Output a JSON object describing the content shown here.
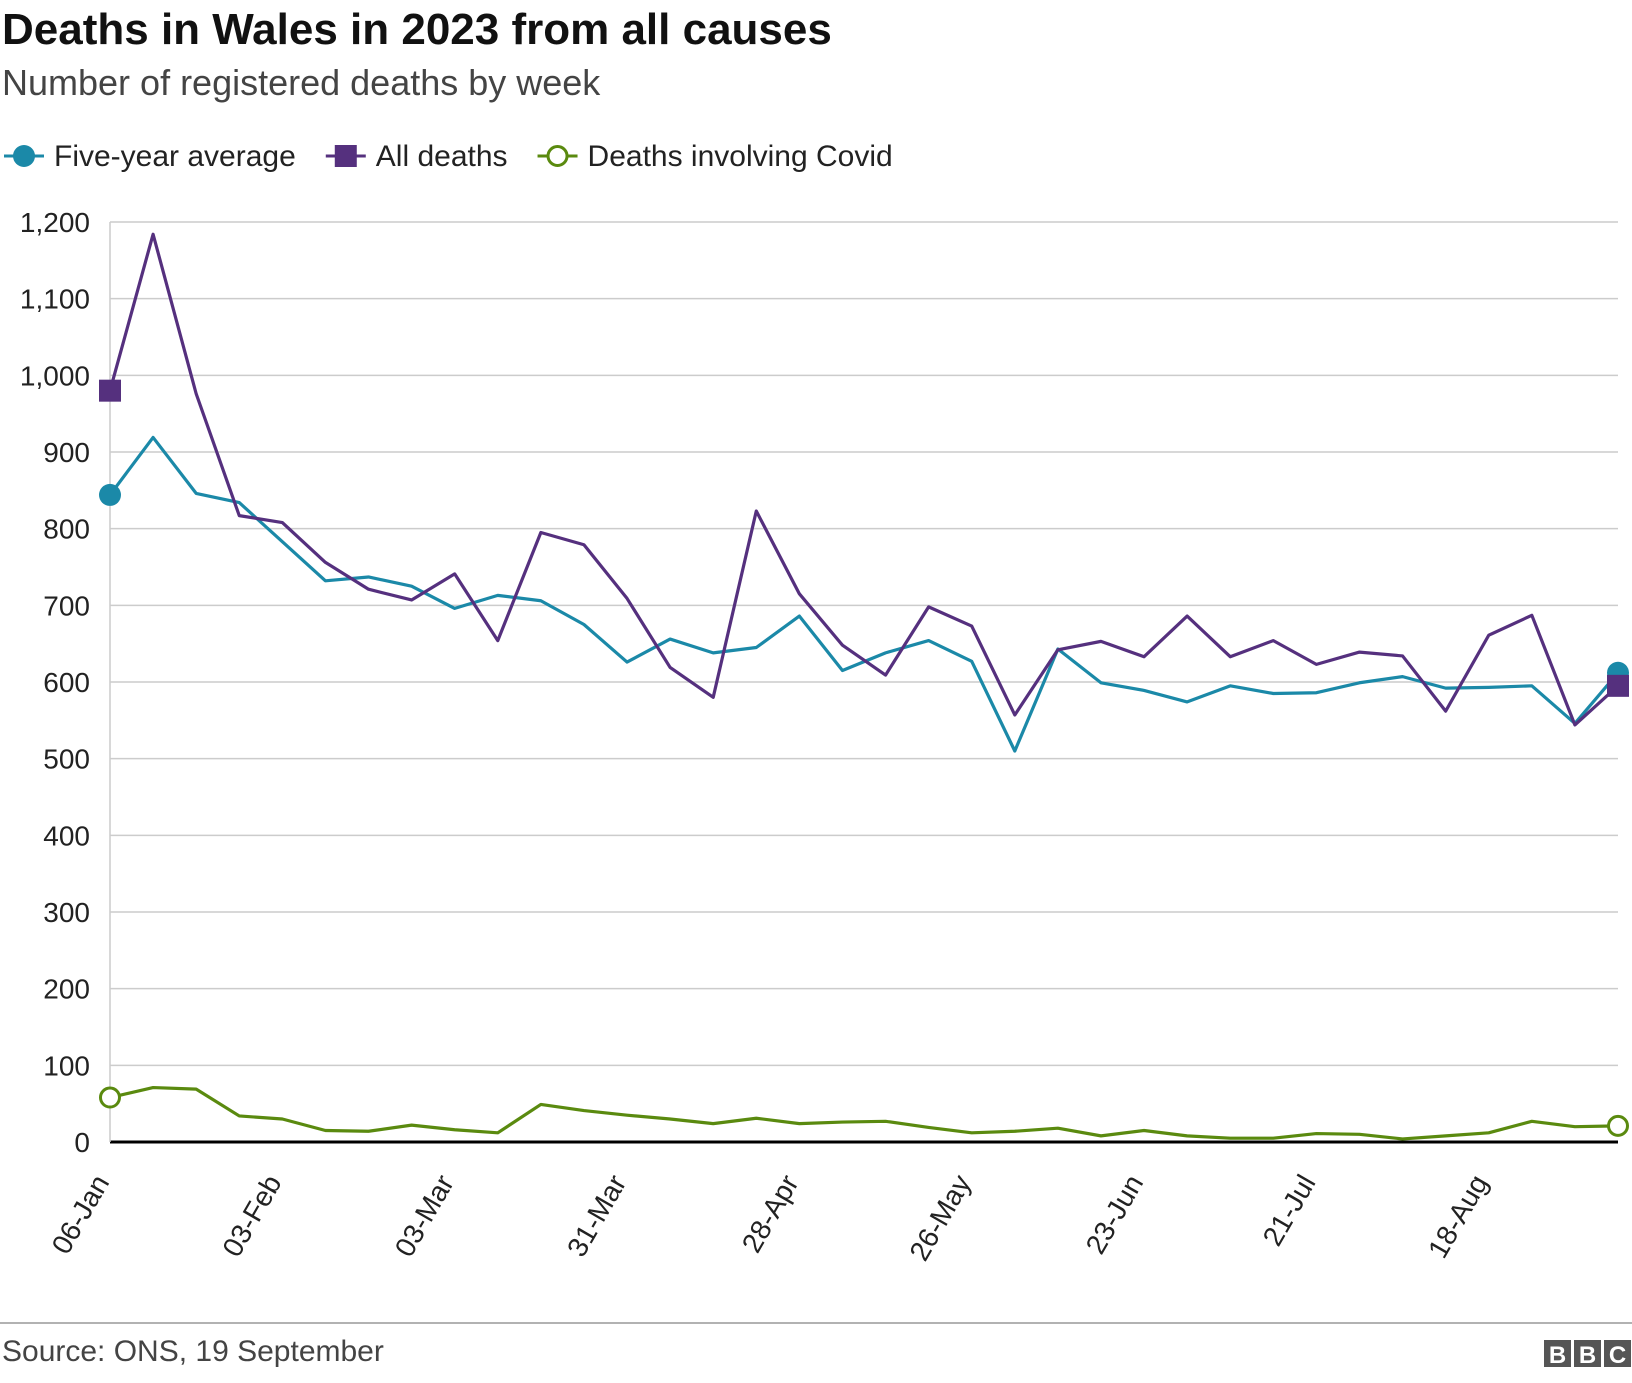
{
  "chart_data": {
    "type": "line",
    "title": "Deaths in Wales in 2023 from all causes",
    "subtitle": "Number of registered deaths by week",
    "source": "Source: ONS, 19 September",
    "branding": [
      "B",
      "B",
      "C"
    ],
    "categories": [
      "06-Jan",
      null,
      null,
      null,
      "03-Feb",
      null,
      null,
      null,
      "03-Mar",
      null,
      null,
      null,
      "31-Mar",
      null,
      null,
      null,
      "28-Apr",
      null,
      null,
      null,
      "26-May",
      null,
      null,
      null,
      "23-Jun",
      null,
      null,
      null,
      "21-Jul",
      null,
      null,
      null,
      "18-Aug",
      null,
      null,
      null
    ],
    "series": [
      {
        "name": "Five-year average",
        "color": "#1b89a8",
        "marker": "circle",
        "values": [
          844,
          919,
          846,
          834,
          783,
          732,
          737,
          725,
          696,
          713,
          706,
          675,
          626,
          656,
          638,
          645,
          686,
          615,
          638,
          654,
          627,
          510,
          643,
          599,
          589,
          574,
          595,
          585,
          586,
          599,
          607,
          592,
          593,
          595,
          546,
          612
        ]
      },
      {
        "name": "All deaths",
        "color": "#55307e",
        "marker": "square",
        "values": [
          980,
          1184,
          976,
          817,
          808,
          756,
          721,
          707,
          741,
          654,
          795,
          779,
          709,
          619,
          580,
          823,
          715,
          648,
          609,
          698,
          673,
          557,
          642,
          653,
          633,
          686,
          633,
          654,
          623,
          639,
          634,
          562,
          661,
          687,
          544,
          595
        ]
      },
      {
        "name": "Deaths involving Covid",
        "color": "#5a8a0f",
        "marker": "hollow-circle",
        "values": [
          58,
          71,
          69,
          34,
          30,
          15,
          14,
          22,
          16,
          12,
          49,
          41,
          35,
          30,
          24,
          31,
          24,
          26,
          27,
          19,
          12,
          14,
          18,
          8,
          15,
          8,
          5,
          5,
          11,
          10,
          4,
          8,
          12,
          27,
          20,
          21
        ]
      }
    ],
    "ylim": [
      0,
      1200
    ],
    "yticks": [
      0,
      100,
      200,
      300,
      400,
      500,
      600,
      700,
      800,
      900,
      {
        "value": 1000,
        "label": "1,000"
      },
      {
        "value": 1100,
        "label": "1,100"
      },
      {
        "value": 1200,
        "label": "1,200"
      }
    ],
    "grid": true
  }
}
